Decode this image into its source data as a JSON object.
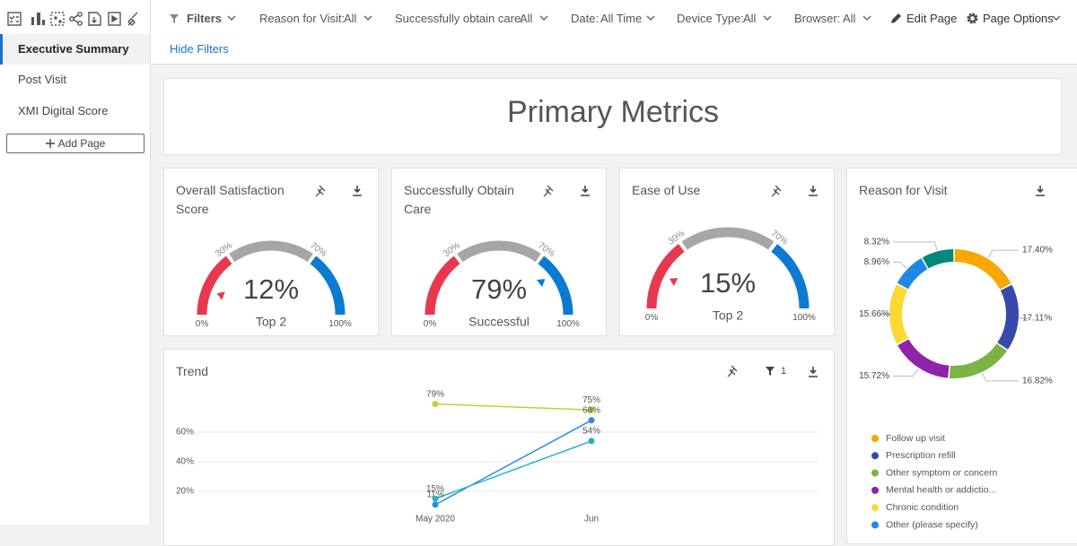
{
  "sidebar": {
    "pages": [
      "Executive Summary",
      "Post Visit",
      "XMI Digital Score"
    ],
    "add_page": "Add Page"
  },
  "filters": {
    "label": "Filters",
    "items": [
      {
        "label": "Reason for Visit:",
        "value": "All"
      },
      {
        "label": "Successfully obtain care:",
        "value": "All"
      },
      {
        "label": "Date:",
        "value": "All Time"
      },
      {
        "label": "Device Type:",
        "value": "All"
      },
      {
        "label": "Browser:",
        "value": "All"
      }
    ],
    "edit_page": "Edit Page",
    "page_options": "Page Options",
    "hide_filters": "Hide Filters"
  },
  "header": {
    "title": "Primary Metrics"
  },
  "chart_data": [
    {
      "type": "gauge",
      "title": "Overall Satisfaction Score",
      "values": [
        12
      ],
      "value_labels": [
        "12%"
      ],
      "sublabel": "Top 2",
      "ylim": [
        0,
        100
      ],
      "yticks": [
        {
          "value": 0,
          "label": "0%"
        },
        {
          "value": 30,
          "label": "30%"
        },
        {
          "value": 70,
          "label": "70%"
        },
        {
          "value": 100,
          "label": "100%"
        }
      ],
      "colors": [
        "#e8384f",
        "#a6a6a6",
        "#0a7bd1"
      ]
    },
    {
      "type": "gauge",
      "title": "Successfully Obtain Care",
      "values": [
        79
      ],
      "value_labels": [
        "79%"
      ],
      "sublabel": "Successful",
      "ylim": [
        0,
        100
      ],
      "yticks": [
        {
          "value": 0,
          "label": "0%"
        },
        {
          "value": 30,
          "label": "30%"
        },
        {
          "value": 70,
          "label": "70%"
        },
        {
          "value": 100,
          "label": "100%"
        }
      ],
      "colors": [
        "#e8384f",
        "#a6a6a6",
        "#0a7bd1"
      ]
    },
    {
      "type": "gauge",
      "title": "Ease of Use",
      "values": [
        15
      ],
      "value_labels": [
        "15%"
      ],
      "sublabel": "Top 2",
      "ylim": [
        0,
        100
      ],
      "yticks": [
        {
          "value": 0,
          "label": "0%"
        },
        {
          "value": 30,
          "label": "30%"
        },
        {
          "value": 70,
          "label": "70%"
        },
        {
          "value": 100,
          "label": "100%"
        }
      ],
      "colors": [
        "#e8384f",
        "#a6a6a6",
        "#0a7bd1"
      ]
    },
    {
      "type": "donut",
      "title": "Reason for Visit",
      "categories": [
        "Follow up visit",
        "Prescription refill",
        "Other symptom or concern",
        "Mental health or addictio...",
        "Chronic condition",
        "Other (please specify)",
        null
      ],
      "values": [
        17.4,
        17.11,
        16.82,
        15.72,
        15.66,
        8.96,
        8.32
      ],
      "value_labels": [
        "17.40%",
        "17.11%",
        "16.82%",
        "15.72%",
        "15.66%",
        "8.96%",
        "8.32%"
      ],
      "colors": [
        "#f5a800",
        "#3949ab",
        "#7cb342",
        "#8e24aa",
        "#fdd835",
        "#1e88e5",
        "#00897b"
      ]
    },
    {
      "type": "line",
      "title": "Trend",
      "filter_count": 1,
      "categories": [
        "May 2020",
        "Jun"
      ],
      "series": [
        {
          "name": null,
          "color": "#c5cc3a",
          "values": [
            79,
            75
          ],
          "value_labels": [
            "79%",
            "75%"
          ]
        },
        {
          "name": null,
          "color": "#2d8be0",
          "values": [
            11,
            68
          ],
          "value_labels": [
            "11%",
            "68%"
          ]
        },
        {
          "name": null,
          "color": "#25b3c9",
          "values": [
            15,
            54
          ],
          "value_labels": [
            "15%",
            "54%"
          ]
        }
      ],
      "ylim": [
        10,
        90
      ],
      "yticks": [
        {
          "value": 20,
          "label": "20%"
        },
        {
          "value": 40,
          "label": "40%"
        },
        {
          "value": 60,
          "label": "60%"
        }
      ],
      "grid": true
    }
  ]
}
